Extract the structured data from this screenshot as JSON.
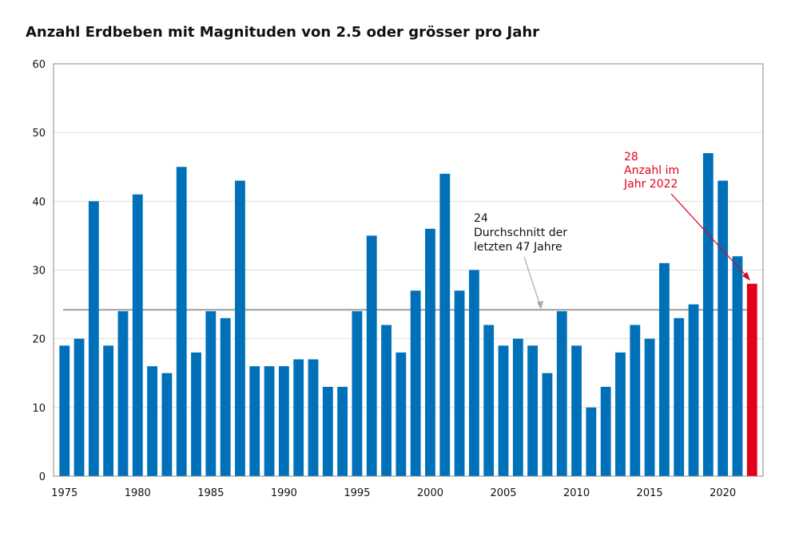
{
  "title": "Anzahl Erdbeben mit Magnituden von 2.5 oder grösser pro Jahr",
  "colors": {
    "bar": "#0071B8",
    "highlight": "#E2001A",
    "average_line": "#888888",
    "grid": "#dddddd",
    "axis": "#888888"
  },
  "chart_data": {
    "type": "bar",
    "categories": [
      1975,
      1976,
      1977,
      1978,
      1979,
      1980,
      1981,
      1982,
      1983,
      1984,
      1985,
      1986,
      1987,
      1988,
      1989,
      1990,
      1991,
      1992,
      1993,
      1994,
      1995,
      1996,
      1997,
      1998,
      1999,
      2000,
      2001,
      2002,
      2003,
      2004,
      2005,
      2006,
      2007,
      2008,
      2009,
      2010,
      2011,
      2012,
      2013,
      2014,
      2015,
      2016,
      2017,
      2018,
      2019,
      2020,
      2021,
      2022
    ],
    "values": [
      19,
      20,
      40,
      19,
      24,
      41,
      16,
      15,
      45,
      18,
      24,
      23,
      43,
      16,
      16,
      16,
      17,
      17,
      13,
      13,
      24,
      35,
      22,
      18,
      27,
      36,
      44,
      27,
      30,
      22,
      19,
      20,
      19,
      15,
      24,
      19,
      10,
      13,
      18,
      22,
      20,
      31,
      23,
      25,
      47,
      43,
      32,
      28
    ],
    "highlight_index": 47,
    "average": 24.2,
    "ylim": [
      0,
      60
    ],
    "yticks": [
      0,
      10,
      20,
      30,
      40,
      50,
      60
    ],
    "xticks": [
      1975,
      1980,
      1985,
      1990,
      1995,
      2000,
      2005,
      2010,
      2015,
      2020
    ],
    "grid": true,
    "xlabel": "",
    "ylabel": ""
  },
  "annotations": {
    "average": [
      "24",
      "Durchschnitt der",
      "letzten 47 Jahre"
    ],
    "current": [
      "28",
      "Anzahl im",
      "Jahr 2022"
    ]
  }
}
